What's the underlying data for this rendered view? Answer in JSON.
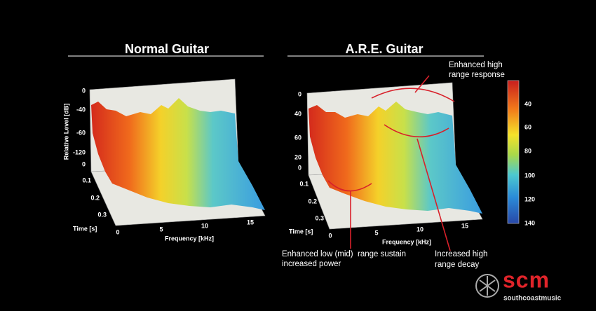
{
  "panels": [
    {
      "title": "Normal Guitar",
      "y_axis_label": "Relative Level [dB]",
      "level_ticks": [
        0,
        -40,
        -60,
        -120
      ],
      "time_ticks": [
        0,
        0.1,
        0.2,
        0.3
      ],
      "time_label": "Time [s]",
      "frequency_ticks": [
        0,
        5,
        10,
        15
      ],
      "frequency_label": "Frequency [kHz]"
    },
    {
      "title": "A.R.E. Guitar",
      "level_ticks": [
        0,
        40,
        60,
        20
      ],
      "time_ticks": [
        0,
        0.1,
        0.2,
        0.3
      ],
      "time_label": "Time [s]",
      "frequency_ticks": [
        0,
        5,
        10,
        15
      ],
      "frequency_label": "Frequency [kHz]"
    }
  ],
  "colorbar": {
    "ticks": [
      40,
      60,
      80,
      100,
      120,
      140
    ]
  },
  "annotations": [
    {
      "lines": [
        "Enhanced high",
        "range response"
      ]
    },
    {
      "lines": [
        "Enhanced low (mid)",
        "increased power"
      ]
    },
    {
      "lines": [
        "range sustain"
      ]
    },
    {
      "lines": [
        "Increased high",
        "range decay"
      ]
    }
  ],
  "logo": {
    "mark": "scm",
    "text": "southcoastmusic"
  }
}
